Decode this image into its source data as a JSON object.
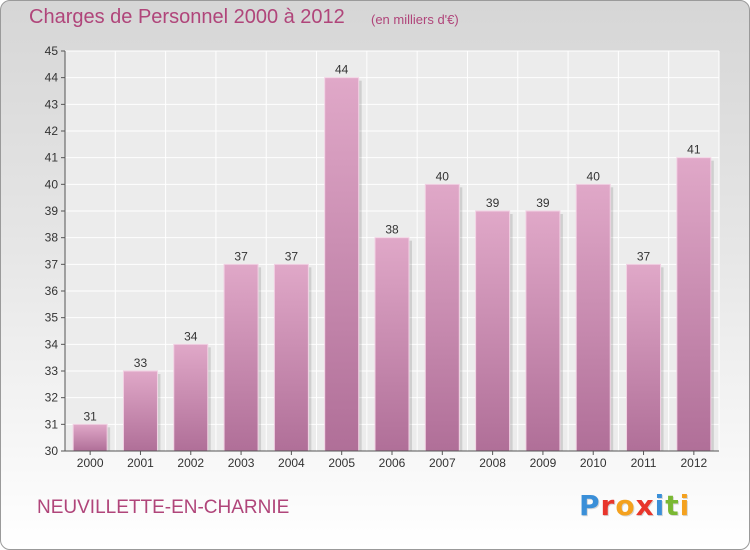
{
  "title": "Charges de Personnel 2000 à 2012",
  "subtitle": "(en milliers d'€)",
  "footer": {
    "commune": "NEUVILLETTE-EN-CHARNIE",
    "brand": "Proxiti"
  },
  "colors": {
    "bar": "#cc88b0",
    "text_accent": "#b0457a",
    "brand_letters": [
      "#3a8fd8",
      "#e8352b",
      "#f4a11e",
      "#e8352b",
      "#3a8fd8",
      "#7ab833",
      "#f4a11e"
    ]
  },
  "chart_data": {
    "type": "bar",
    "categories": [
      "2000",
      "2001",
      "2002",
      "2003",
      "2004",
      "2005",
      "2006",
      "2007",
      "2008",
      "2009",
      "2010",
      "2011",
      "2012"
    ],
    "values": [
      31,
      33,
      34,
      37,
      37,
      44,
      38,
      40,
      39,
      39,
      40,
      37,
      41
    ],
    "title": "Charges de Personnel 2000 à 2012",
    "subtitle": "(en milliers d'€)",
    "xlabel": "",
    "ylabel": "",
    "ylim": [
      30,
      45
    ],
    "yticks": [
      30,
      31,
      32,
      33,
      34,
      35,
      36,
      37,
      38,
      39,
      40,
      41,
      42,
      43,
      44,
      45
    ],
    "grid": true,
    "data_labels": true
  }
}
